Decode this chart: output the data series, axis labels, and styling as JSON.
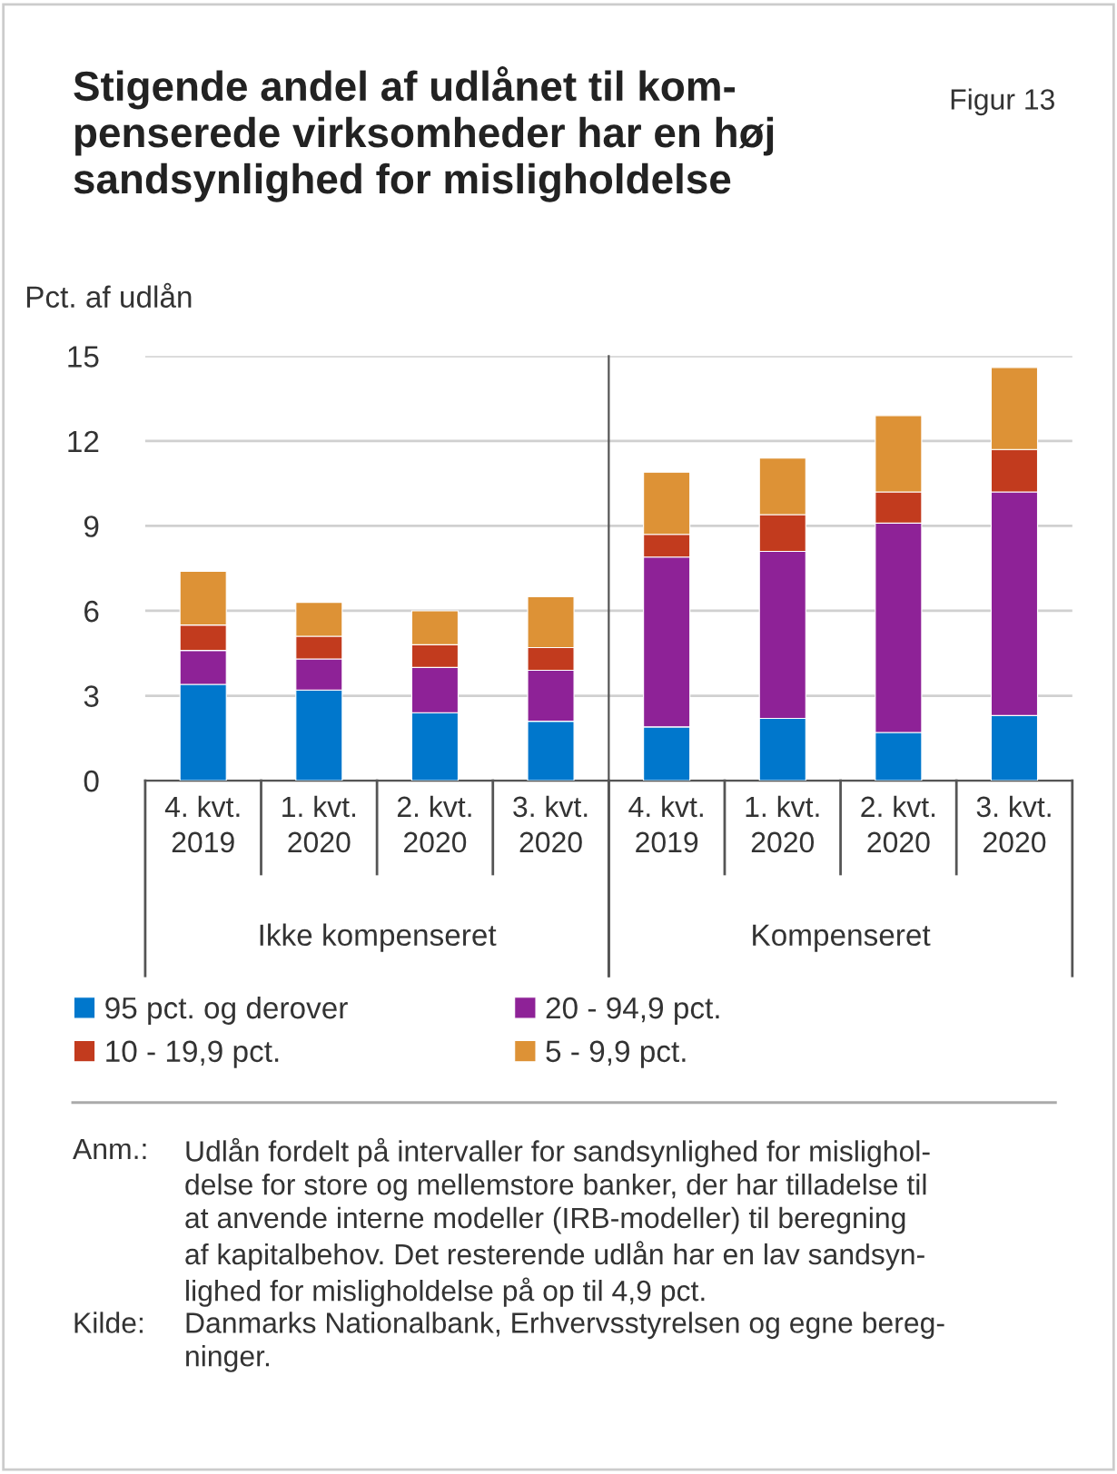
{
  "chart_data": [
    {
      "type": "bar",
      "stacked": true,
      "title": "Stigende andel af udlånet til kom-\npenserede virksomheder har en høj\nsandsynlighed for misligholdelse",
      "ylabel": "Pct. af udlån",
      "xlabel": "Ikke kompenseret",
      "categories": [
        "4. kvt.\n2019",
        "1. kvt.\n2020",
        "2. kvt.\n2020",
        "3. kvt.\n2020"
      ],
      "series": [
        {
          "name": "95 pct. og derover",
          "color": "#0077cc",
          "values": [
            3.4,
            3.2,
            2.4,
            2.1
          ]
        },
        {
          "name": "20 - 94,9 pct.",
          "color": "#8e2297",
          "values": [
            1.2,
            1.1,
            1.6,
            1.8
          ]
        },
        {
          "name": "10 - 19,9 pct.",
          "color": "#c23b1e",
          "values": [
            0.9,
            0.8,
            0.8,
            0.8
          ]
        },
        {
          "name": "5 - 9,9 pct.",
          "color": "#dd9236",
          "values": [
            1.9,
            1.2,
            1.2,
            1.8
          ]
        }
      ],
      "ylim": [
        0,
        15
      ],
      "yticks": [
        0,
        3,
        6,
        9,
        12,
        15
      ],
      "grid": "y",
      "legend": "bottom",
      "annotations": [
        "Figur 13",
        "Anm.: Udlån fordelt på intervaller for sandsynlighed for mislighol-\ndelse for store og mellemstore banker, der har tilladelse til\nat anvende interne modeller (IRB-modeller) til beregning\naf kapitalbehov. Det resterende udlån har en lav sandsyn-\nlighed for misligholdelse på op til 4,9 pct.",
        "Kilde: Danmarks Nationalbank, Erhvervsstyrelsen og egne bereg-\nninger."
      ]
    },
    {
      "type": "bar",
      "stacked": true,
      "xlabel": "Kompenseret",
      "categories": [
        "4. kvt.\n2019",
        "1. kvt.\n2020",
        "2. kvt.\n2020",
        "3. kvt.\n2020"
      ],
      "series": [
        {
          "color": "#0077cc",
          "values": [
            1.9,
            2.2,
            1.7,
            2.3
          ]
        },
        {
          "color": "#8e2297",
          "values": [
            6.0,
            5.9,
            7.4,
            7.9
          ]
        },
        {
          "color": "#c23b1e",
          "values": [
            0.8,
            1.3,
            1.1,
            1.5
          ]
        },
        {
          "color": "#dd9236",
          "values": [
            2.2,
            2.0,
            2.7,
            2.9
          ]
        }
      ],
      "ylim": [
        0,
        15
      ],
      "yticks": [
        0,
        3,
        6,
        9,
        12,
        15
      ],
      "grid": "y",
      "tick_labels": "x"
    }
  ]
}
